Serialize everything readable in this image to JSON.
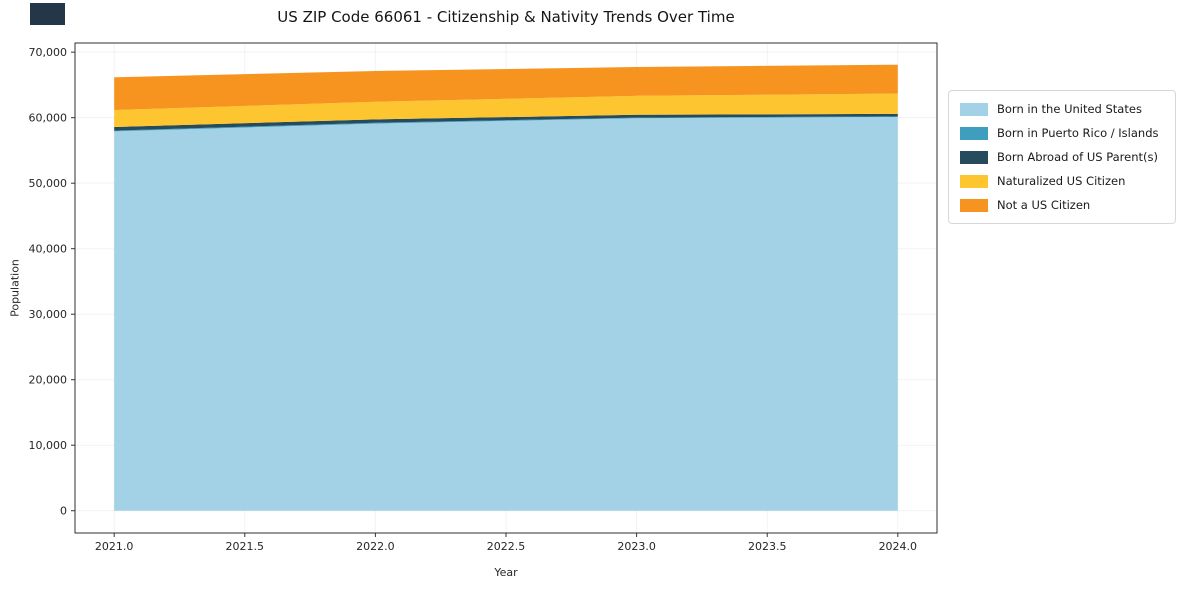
{
  "decor": {
    "corner_box_color": "#233748"
  },
  "chart_data": {
    "type": "area",
    "stacked": true,
    "title": "US ZIP Code 66061 - Citizenship & Nativity Trends Over Time",
    "xlabel": "Year",
    "ylabel": "Population",
    "x": [
      2021,
      2022,
      2023,
      2024
    ],
    "series": [
      {
        "name": "Born in the United States",
        "color": "#a3d2e6",
        "values": [
          57900,
          59100,
          59900,
          60100
        ]
      },
      {
        "name": "Born in Puerto Rico / Islands",
        "color": "#3f9dbd",
        "values": [
          120,
          130,
          110,
          100
        ]
      },
      {
        "name": "Born Abroad of US Parent(s)",
        "color": "#254b5d",
        "values": [
          550,
          500,
          430,
          380
        ]
      },
      {
        "name": "Naturalized US Citizen",
        "color": "#fdc530",
        "values": [
          2600,
          2700,
          2900,
          3100
        ]
      },
      {
        "name": "Not a US Citizen",
        "color": "#f7941f",
        "values": [
          5000,
          4700,
          4400,
          4400
        ]
      }
    ],
    "xlim": [
      2020.85,
      2024.15
    ],
    "ylim": [
      -3400,
      71400
    ],
    "x_ticks": [
      "2021.0",
      "2021.5",
      "2022.0",
      "2022.5",
      "2023.0",
      "2023.5",
      "2024.0"
    ],
    "x_tick_values": [
      2021,
      2021.5,
      2022,
      2022.5,
      2023,
      2023.5,
      2024
    ],
    "y_ticks": [
      "0",
      "10,000",
      "20,000",
      "30,000",
      "40,000",
      "50,000",
      "60,000",
      "70,000"
    ],
    "y_tick_values": [
      0,
      10000,
      20000,
      30000,
      40000,
      50000,
      60000,
      70000
    ],
    "legend_position": "right",
    "grid": true
  }
}
